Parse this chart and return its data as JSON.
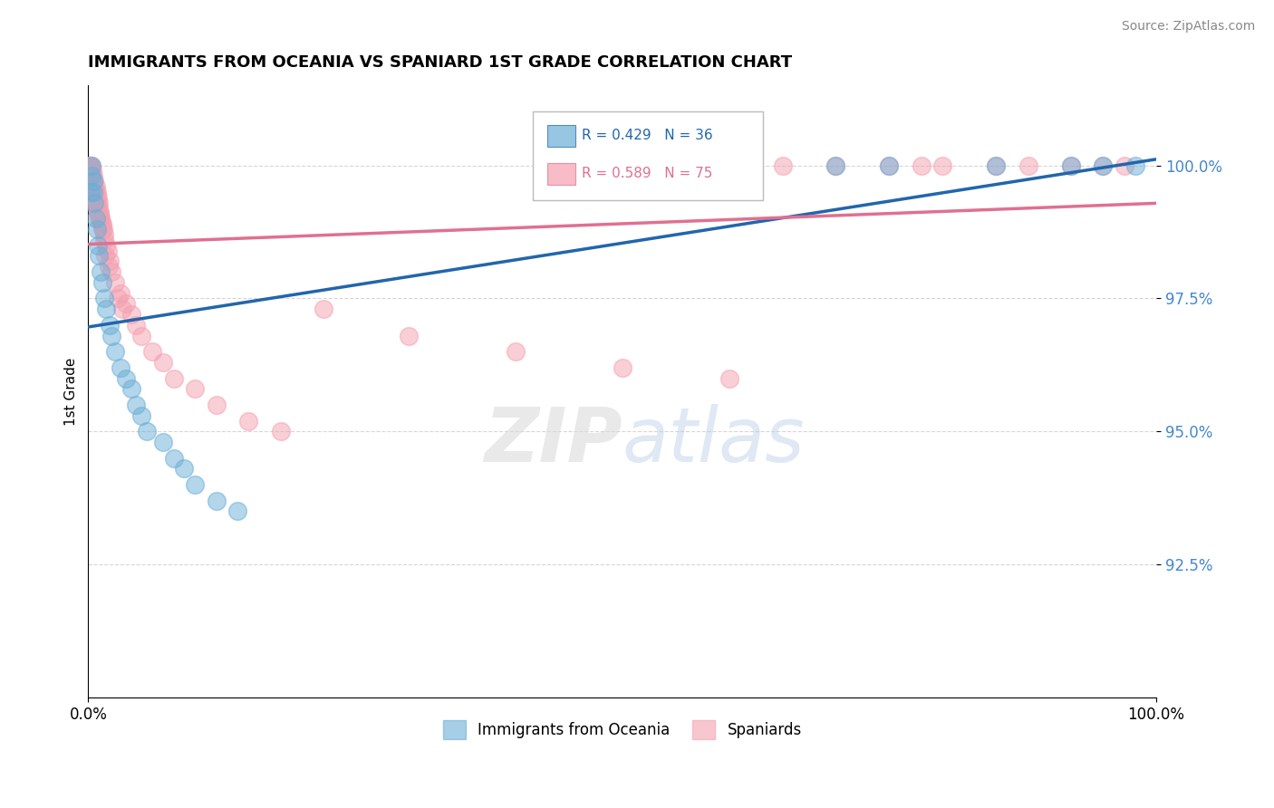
{
  "title": "IMMIGRANTS FROM OCEANIA VS SPANIARD 1ST GRADE CORRELATION CHART",
  "source": "Source: ZipAtlas.com",
  "ylabel": "1st Grade",
  "xlim": [
    0.0,
    100.0
  ],
  "ylim": [
    90.0,
    101.5
  ],
  "yticks": [
    92.5,
    95.0,
    97.5,
    100.0
  ],
  "ytick_labels": [
    "92.5%",
    "95.0%",
    "97.5%",
    "100.0%"
  ],
  "xticks": [
    0.0,
    100.0
  ],
  "xtick_labels": [
    "0.0%",
    "100.0%"
  ],
  "legend_blue_label": "Immigrants from Oceania",
  "legend_pink_label": "Spaniards",
  "R_blue": 0.429,
  "N_blue": 36,
  "R_pink": 0.589,
  "N_pink": 75,
  "blue_color": "#6baed6",
  "pink_color": "#f4a0b0",
  "blue_line_color": "#2166ac",
  "pink_line_color": "#e07090",
  "blue_x": [
    0.2,
    0.3,
    0.3,
    0.5,
    0.5,
    0.6,
    0.7,
    0.8,
    0.9,
    1.0,
    1.2,
    1.3,
    1.5,
    1.7,
    2.0,
    2.2,
    2.5,
    3.0,
    3.5,
    4.0,
    4.5,
    5.0,
    5.5,
    7.0,
    8.0,
    9.0,
    10.0,
    12.0,
    14.0,
    55.0,
    70.0,
    75.0,
    85.0,
    92.0,
    95.0,
    98.0
  ],
  "blue_y": [
    99.5,
    100.0,
    99.8,
    99.7,
    99.5,
    99.3,
    99.0,
    98.8,
    98.5,
    98.3,
    98.0,
    97.8,
    97.5,
    97.3,
    97.0,
    96.8,
    96.5,
    96.2,
    96.0,
    95.8,
    95.5,
    95.3,
    95.0,
    94.8,
    94.5,
    94.3,
    94.0,
    93.7,
    93.5,
    100.0,
    100.0,
    100.0,
    100.0,
    100.0,
    100.0,
    100.0
  ],
  "pink_x": [
    0.1,
    0.2,
    0.2,
    0.3,
    0.3,
    0.4,
    0.4,
    0.5,
    0.5,
    0.6,
    0.6,
    0.7,
    0.7,
    0.8,
    0.8,
    0.9,
    0.9,
    1.0,
    1.0,
    1.1,
    1.2,
    1.3,
    1.4,
    1.5,
    1.5,
    1.7,
    1.8,
    2.0,
    2.2,
    2.5,
    3.0,
    3.5,
    4.0,
    4.5,
    5.0,
    6.0,
    7.0,
    8.0,
    10.0,
    12.0,
    15.0,
    18.0,
    0.15,
    0.25,
    0.35,
    0.45,
    0.55,
    0.65,
    0.75,
    0.85,
    0.95,
    1.05,
    1.15,
    1.25,
    1.35,
    1.6,
    1.9,
    2.8,
    3.2,
    55.0,
    65.0,
    70.0,
    75.0,
    80.0,
    85.0,
    88.0,
    92.0,
    95.0,
    97.0,
    22.0,
    30.0,
    40.0,
    50.0,
    60.0,
    78.0
  ],
  "pink_y": [
    100.0,
    100.0,
    99.8,
    100.0,
    99.7,
    99.9,
    99.6,
    99.8,
    99.5,
    99.7,
    99.4,
    99.6,
    99.3,
    99.5,
    99.2,
    99.4,
    99.1,
    99.3,
    99.0,
    99.1,
    99.0,
    98.9,
    98.8,
    98.7,
    98.6,
    98.5,
    98.4,
    98.2,
    98.0,
    97.8,
    97.6,
    97.4,
    97.2,
    97.0,
    96.8,
    96.5,
    96.3,
    96.0,
    95.8,
    95.5,
    95.2,
    95.0,
    100.0,
    99.9,
    99.8,
    99.7,
    99.6,
    99.5,
    99.4,
    99.3,
    99.2,
    99.1,
    99.0,
    98.9,
    98.8,
    98.3,
    98.1,
    97.5,
    97.3,
    100.0,
    100.0,
    100.0,
    100.0,
    100.0,
    100.0,
    100.0,
    100.0,
    100.0,
    100.0,
    97.3,
    96.8,
    96.5,
    96.2,
    96.0,
    100.0
  ]
}
